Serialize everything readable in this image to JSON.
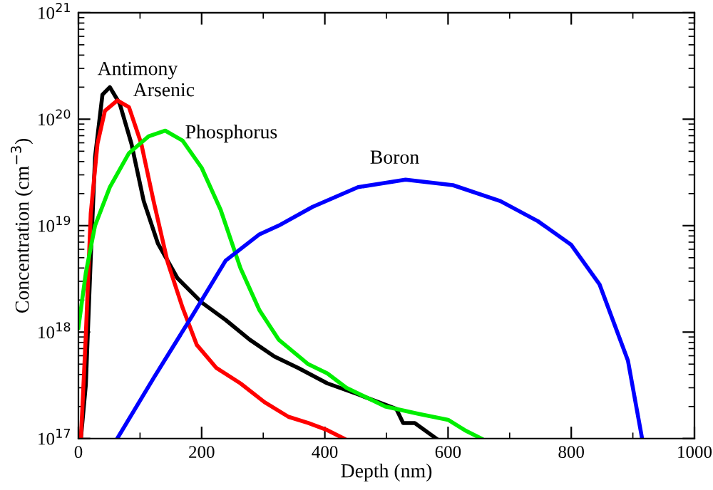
{
  "chart_data": {
    "type": "line",
    "xlabel": "Depth (nm)",
    "ylabel": "Concentration (cm$^{−3}$)",
    "log": "y",
    "xlim": [
      0,
      1000
    ],
    "xticks": [
      0,
      200,
      400,
      600,
      800,
      1000
    ],
    "ylim": [
      1e+17,
      1e+21
    ],
    "yticks": [
      {
        "value": 1e+17,
        "label": "10$^{17}$"
      },
      {
        "value": 1e+18,
        "label": "10$^{18}$"
      },
      {
        "value": 1e+19,
        "label": "10$^{19}$"
      },
      {
        "value": 1e+20,
        "label": "10$^{20}$"
      },
      {
        "value": 1e+21,
        "label": "10$^{21}$"
      }
    ],
    "grid": false,
    "legend": false,
    "marker": "none",
    "line_style": "solid",
    "series": [
      {
        "name": "Antimony",
        "color": "#000000",
        "x": [
          4,
          12,
          20,
          27,
          39,
          51,
          67,
          86,
          106,
          129,
          161,
          200,
          239,
          278,
          318,
          357,
          404,
          454,
          516,
          527,
          546,
          581
        ],
        "values": [
          1e+17,
          3.2e+17,
          5e+18,
          4.4e+19,
          1.7e+20,
          2e+20,
          1.4e+20,
          5.9e+19,
          1.7e+19,
          6.8e+18,
          3.2e+18,
          1.9e+18,
          1.3e+18,
          8.5e+17,
          5.9e+17,
          4.6e+17,
          3.3e+17,
          2.6e+17,
          1.9e+17,
          1.4e+17,
          1.4e+17,
          1e+17
        ]
      },
      {
        "name": "Arsenic",
        "color": "#ff0000",
        "x": [
          4,
          12,
          20,
          31,
          43,
          63,
          82,
          102,
          122,
          145,
          169,
          192,
          224,
          263,
          302,
          341,
          373,
          404,
          431
        ],
        "values": [
          1e+17,
          9.3e+17,
          1.3e+19,
          5.9e+19,
          1.2e+20,
          1.5e+20,
          1.3e+20,
          5.9e+19,
          1.7e+19,
          4.5e+18,
          1.7e+18,
          7.6e+17,
          4.6e+17,
          3.3e+17,
          2.2e+17,
          1.6e+17,
          1.4e+17,
          1.2e+17,
          1e+17
        ]
      },
      {
        "name": "Phosphorus",
        "color": "#00ee00",
        "x": [
          0,
          12,
          27,
          51,
          82,
          114,
          141,
          169,
          200,
          231,
          263,
          294,
          325,
          373,
          404,
          435,
          498,
          553,
          600,
          627,
          654
        ],
        "values": [
          1.1e+18,
          3.6e+18,
          1e+19,
          2.3e+19,
          4.8e+19,
          6.9e+19,
          7.8e+19,
          6.3e+19,
          3.5e+19,
          1.4e+19,
          4e+18,
          1.6e+18,
          8.5e+17,
          5e+17,
          4.1e+17,
          3e+17,
          2e+17,
          1.7e+17,
          1.5e+17,
          1.2e+17,
          1e+17
        ]
      },
      {
        "name": "Boron",
        "color": "#0000ff",
        "x": [
          63,
          122,
          184,
          239,
          294,
          325,
          380,
          454,
          531,
          608,
          685,
          746,
          800,
          846,
          892,
          915
        ],
        "values": [
          1e+17,
          3.7e+17,
          1.4e+18,
          4.7e+18,
          8.3e+18,
          1e+19,
          1.5e+19,
          2.3e+19,
          2.7e+19,
          2.4e+19,
          1.7e+19,
          1.1e+19,
          6.6e+18,
          2.8e+18,
          5.4e+17,
          1e+17
        ]
      }
    ]
  }
}
